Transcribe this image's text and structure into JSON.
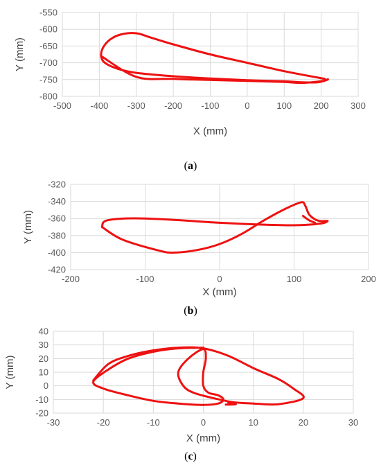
{
  "chart_data": [
    {
      "type": "line",
      "caption": "a",
      "xlabel": "X (mm)",
      "ylabel": "Y (mm)",
      "xlim": [
        -500,
        300
      ],
      "ylim": [
        -800,
        -550
      ],
      "xticks": [
        -500,
        -400,
        -300,
        -200,
        -100,
        0,
        100,
        200,
        300
      ],
      "yticks": [
        -550,
        -600,
        -650,
        -700,
        -750,
        -800
      ],
      "grid": true,
      "color": "#ee1111",
      "series": [
        {
          "x": [
            210,
            100,
            0,
            -100,
            -200,
            -260,
            -300,
            -340,
            -370,
            -390,
            -395,
            -385,
            -350,
            -300,
            -200,
            -100,
            0,
            100,
            145,
            190,
            213,
            218,
            205,
            150,
            100,
            0,
            -100,
            -200,
            -300,
            -395
          ],
          "y": [
            -748,
            -725,
            -700,
            -675,
            -645,
            -625,
            -612,
            -615,
            -630,
            -655,
            -680,
            -700,
            -718,
            -730,
            -740,
            -747,
            -752,
            -755,
            -758,
            -758,
            -752,
            -749,
            -754,
            -760,
            -757,
            -754,
            -751,
            -748,
            -742,
            -680
          ]
        }
      ]
    },
    {
      "type": "line",
      "caption": "b",
      "xlabel": "X (mm)",
      "ylabel": "Y (mm)",
      "xlim": [
        -200,
        200
      ],
      "ylim": [
        -420,
        -320
      ],
      "xticks": [
        -200,
        -100,
        0,
        100,
        200
      ],
      "yticks": [
        -320,
        -340,
        -360,
        -380,
        -400,
        -420
      ],
      "grid": true,
      "color": "#ee1111",
      "series": [
        {
          "x": [
            -158,
            -130,
            -80,
            -60,
            -30,
            0,
            30,
            60,
            90,
            110,
            115,
            120,
            128,
            135,
            145,
            135,
            100,
            50,
            0,
            -100,
            -150,
            -158
          ],
          "y": [
            -370,
            -385,
            -398,
            -400,
            -397,
            -390,
            -378,
            -362,
            -348,
            -341,
            -345,
            -355,
            -361,
            -363,
            -363,
            -366,
            -368,
            -367,
            -365,
            -360,
            -362,
            -370
          ]
        },
        {
          "x": [
            112,
            120,
            128
          ],
          "y": [
            -357,
            -362,
            -365
          ]
        }
      ]
    },
    {
      "type": "line",
      "caption": "c",
      "xlabel": "X (mm)",
      "ylabel": "Y (mm)",
      "xlim": [
        -30,
        30
      ],
      "ylim": [
        -20,
        40
      ],
      "xticks": [
        -30,
        -20,
        -10,
        0,
        10,
        20,
        30
      ],
      "yticks": [
        40,
        30,
        20,
        10,
        0,
        -10,
        -20
      ],
      "grid": true,
      "color": "#ee1111",
      "series": [
        {
          "x": [
            0,
            -5,
            -10,
            -15,
            -19,
            -22,
            -20,
            -15,
            -10,
            -5,
            0,
            3,
            4,
            3,
            1,
            0,
            0,
            0.5,
            0,
            -3,
            -5,
            -4,
            -2,
            2,
            6,
            10,
            15,
            20,
            18,
            15,
            10,
            5,
            0,
            -5,
            -10,
            -15,
            -19,
            -22
          ],
          "y": [
            28,
            27.5,
            25,
            20,
            12,
            3,
            -2,
            -7,
            -11,
            -13,
            -14,
            -13,
            -10,
            -7,
            -5,
            0,
            10,
            20,
            27,
            20,
            10,
            0,
            -5,
            -9,
            -12,
            -13,
            -13.5,
            -9,
            -2,
            5,
            13,
            22,
            27.5,
            28,
            26,
            22,
            16,
            4
          ]
        },
        {
          "x": [
            5,
            6.5,
            4.5
          ],
          "y": [
            -12.5,
            -13.5,
            -13.8
          ]
        }
      ]
    }
  ]
}
